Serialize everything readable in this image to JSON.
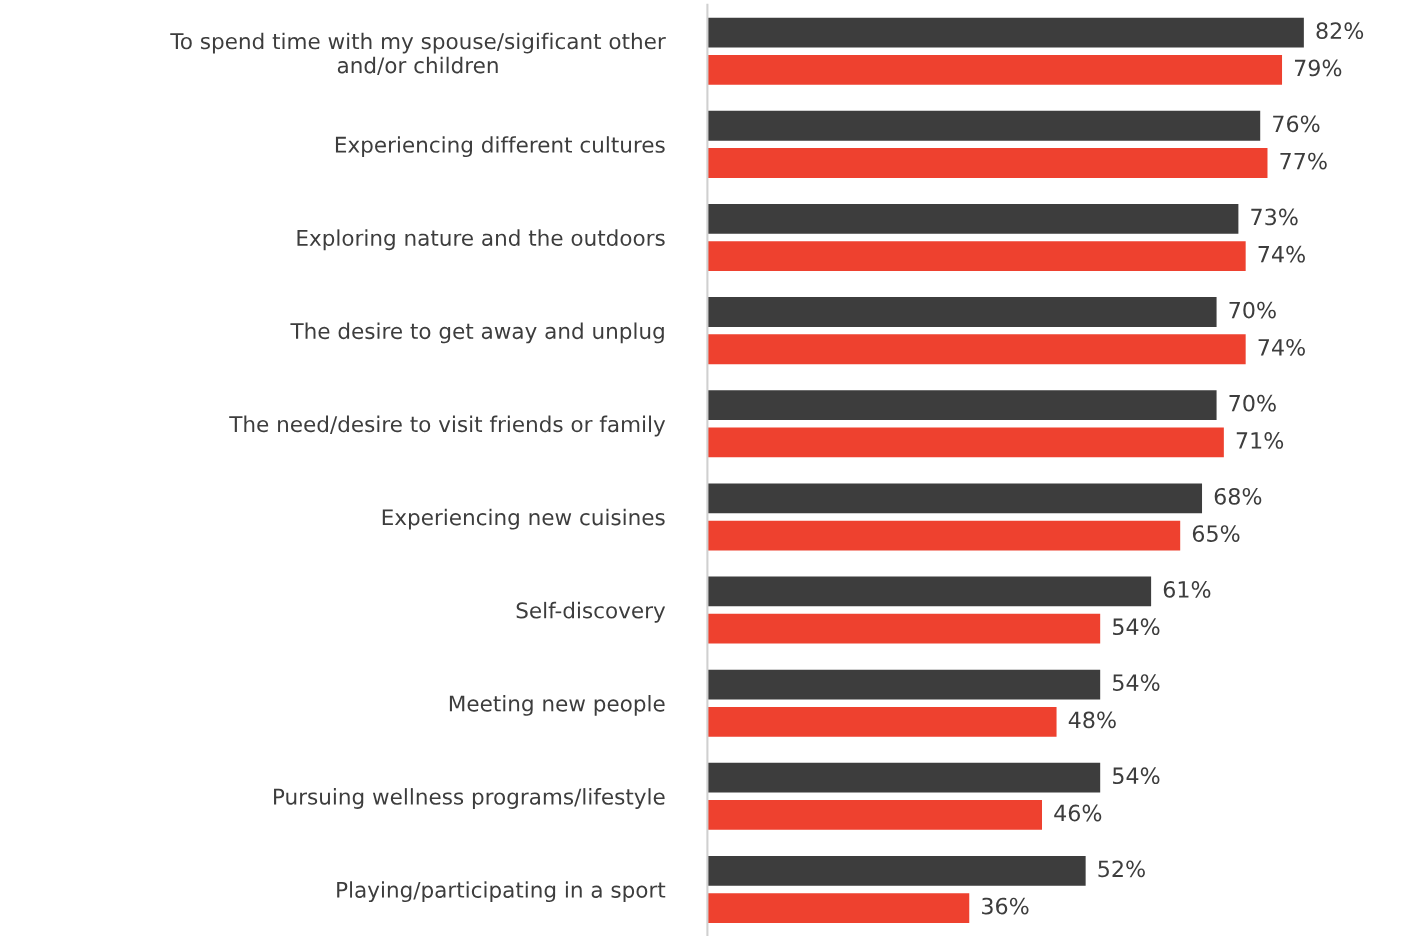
{
  "chart_data": {
    "type": "bar",
    "orientation": "horizontal",
    "categories": [
      "To spend time with my spouse/sigificant other\nand/or children",
      "Experiencing different cultures",
      "Exploring nature and the outdoors",
      "The desire to get away and unplug",
      "The need/desire to visit friends or family",
      "Experiencing new cuisines",
      "Self-discovery",
      "Meeting new people",
      "Pursuing wellness programs/lifestyle",
      "Playing/participating in a sport"
    ],
    "series": [
      {
        "color": "#3d3d3d",
        "values": [
          82,
          76,
          73,
          70,
          70,
          68,
          61,
          54,
          54,
          52
        ],
        "value_labels": [
          "82%",
          "76%",
          "73%",
          "70%",
          "70%",
          "68%",
          "61%",
          "54%",
          "54%",
          "52%"
        ]
      },
      {
        "color": "#ee412f",
        "values": [
          79,
          77,
          74,
          74,
          71,
          65,
          54,
          48,
          46,
          36
        ],
        "value_labels": [
          "79%",
          "77%",
          "74%",
          "74%",
          "71%",
          "65%",
          "54%",
          "48%",
          "46%",
          "36%"
        ]
      }
    ],
    "stacked": false
  }
}
